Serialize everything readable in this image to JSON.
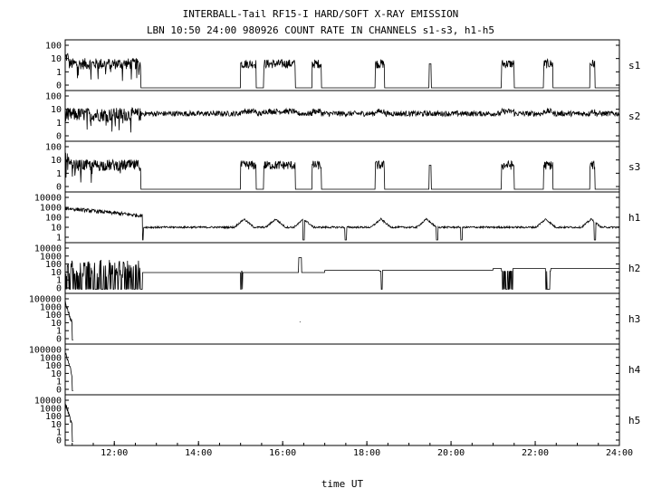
{
  "chart_data": {
    "type": "line",
    "title": "INTERBALL-Tail RF15-I HARD/SOFT X-RAY EMISSION",
    "subtitle": "LBN 10:50 24:00 980926  COUNT RATE IN CHANNELS s1-s3, h1-h5",
    "xlabel": "time UT",
    "xlim": [
      "10:50",
      "24:00"
    ],
    "x_ticks": [
      "12:00",
      "14:00",
      "16:00",
      "18:00",
      "20:00",
      "22:00",
      "24:00"
    ],
    "grid": false,
    "legend": "none",
    "panels": [
      {
        "name": "s1",
        "yticks": [
          "100",
          "10",
          "1",
          "0"
        ],
        "description_points": [
          [
            "10:52",
            8
          ],
          [
            "11:30",
            4
          ],
          [
            "12:00",
            4
          ],
          [
            "12:35",
            5
          ],
          [
            "12:38",
            0.5
          ],
          [
            "15:00",
            0
          ],
          [
            "15:05",
            6
          ],
          [
            "15:20",
            6
          ],
          [
            "15:25",
            0
          ],
          [
            "15:35",
            8
          ],
          [
            "16:15",
            8
          ],
          [
            "16:20",
            0
          ],
          [
            "16:45",
            6
          ],
          [
            "16:55",
            0
          ],
          [
            "18:15",
            6
          ],
          [
            "18:25",
            0
          ],
          [
            "19:30",
            5
          ],
          [
            "21:15",
            6
          ],
          [
            "21:30",
            0
          ],
          [
            "22:15",
            8
          ],
          [
            "22:25",
            0
          ],
          [
            "23:20",
            8
          ],
          [
            "23:25",
            0
          ]
        ]
      },
      {
        "name": "s2",
        "yticks": [
          "100",
          "10",
          "1",
          "0"
        ]
      },
      {
        "name": "s3",
        "yticks": [
          "100",
          "10",
          "1",
          "0"
        ]
      },
      {
        "name": "h1",
        "yticks": [
          "10000",
          "1000",
          "100",
          "10",
          "1"
        ]
      },
      {
        "name": "h2",
        "yticks": [
          "10000",
          "1000",
          "100",
          "10",
          "1",
          "0"
        ]
      },
      {
        "name": "h3",
        "yticks": [
          "100000",
          "1000",
          "100",
          "10",
          "1",
          "0"
        ]
      },
      {
        "name": "h4",
        "yticks": [
          "100000",
          "1000",
          "100",
          "10",
          "1",
          "0"
        ]
      },
      {
        "name": "h5",
        "yticks": [
          "10000",
          "1000",
          "100",
          "10",
          "1",
          "0"
        ]
      }
    ]
  }
}
